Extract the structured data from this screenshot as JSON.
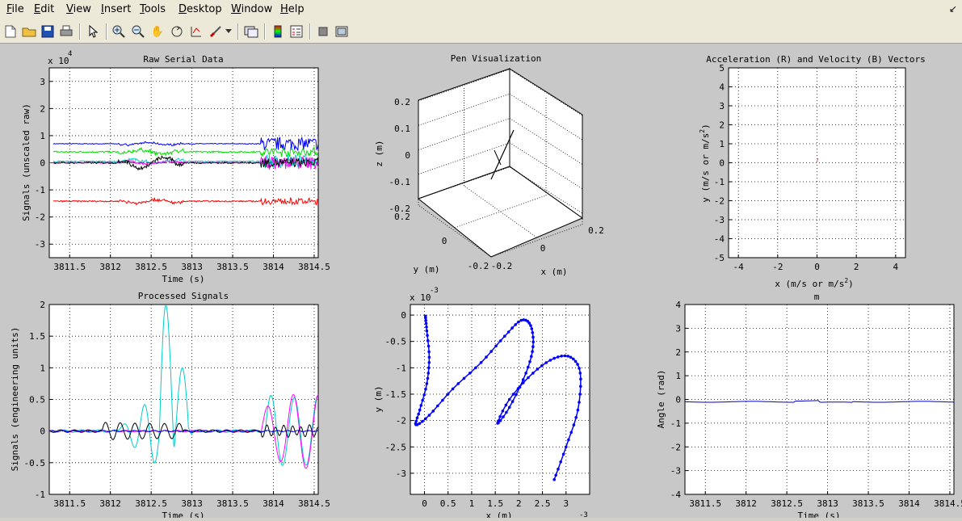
{
  "menu": {
    "items": [
      "File",
      "Edit",
      "View",
      "Insert",
      "Tools",
      "Desktop",
      "Window",
      "Help"
    ]
  },
  "toolbar": {
    "icons": [
      "new-file-icon",
      "open-folder-icon",
      "save-icon",
      "print-icon",
      "pointer-icon",
      "zoom-in-icon",
      "zoom-out-icon",
      "pan-hand-icon",
      "rotate-3d-icon",
      "data-cursor-icon",
      "brush-icon",
      "dropdown-arrow-icon",
      "link-plot-icon",
      "colorbar-icon",
      "legend-icon",
      "hide-tools-icon",
      "show-tools-icon"
    ]
  },
  "plots": {
    "raw": {
      "title": "Raw Serial Data",
      "xlabel": "Time (s)",
      "ylabel": "Signals (unscaled raw)",
      "exponent": "x 10",
      "exponent_power": "4"
    },
    "pen": {
      "title": "Pen Visualization",
      "xlabel": "x (m)",
      "ylabel": "y (m)",
      "zlabel": "z (m)"
    },
    "accel": {
      "title": "Acceleration (R) and Velocity (B) Vectors",
      "xlabel": "x (m/s or m/s",
      "xlabel_sup": "2",
      "xlabel_end": ")",
      "ylabel": "y (m/s or m/s",
      "ylabel_sup": "2",
      "ylabel_end": ")"
    },
    "processed": {
      "title": "Processed Signals",
      "xlabel": "Time (s)",
      "ylabel": "Signals (engineering units)"
    },
    "traj": {
      "xlabel": "x (m)",
      "ylabel": "y (m)",
      "exponent": "x 10",
      "exponent_power": "-3",
      "x_exponent_power": "-3"
    },
    "angle": {
      "title": "m",
      "xlabel": "Time (s)",
      "ylabel": "Angle (rad)"
    }
  },
  "chart_data": [
    {
      "type": "line",
      "title": "Raw Serial Data",
      "xlabel": "Time (s)",
      "ylabel": "Signals (unscaled raw)",
      "xlim": [
        3811.25,
        3814.55
      ],
      "ylim": [
        -3.5,
        3.5
      ],
      "y_scale_label": "x 10^4",
      "xticks": [
        "3811.5",
        "3812",
        "3812.5",
        "3813",
        "3813.5",
        "3814",
        "3814.5"
      ],
      "xtick_values": [
        3811.5,
        3812,
        3812.5,
        3813,
        3813.5,
        3814,
        3814.5
      ],
      "yticks": [
        "3",
        "2",
        "1",
        "0",
        "-1",
        "-2",
        "-3"
      ],
      "ytick_values": [
        3,
        2,
        1,
        0,
        -1,
        -2,
        -3
      ],
      "series": [
        {
          "color": "#0000ff",
          "baseline": 0.7,
          "noise": 0.03,
          "burst": 0.3
        },
        {
          "color": "#00dd00",
          "baseline": 0.4,
          "noise": 0.06,
          "burst": 0.2
        },
        {
          "color": "#00cccc",
          "baseline": 0.05,
          "noise": 0.05,
          "burst": 0.3
        },
        {
          "color": "#ff00ff",
          "baseline": 0.0,
          "noise": 0.04,
          "burst": 0.3
        },
        {
          "color": "#000000",
          "baseline": 0.0,
          "noise": 0.06,
          "burst": 0.2
        },
        {
          "color": "#ff0000",
          "baseline": -1.42,
          "noise": 0.05,
          "burst": 0.15
        }
      ],
      "grid": true
    },
    {
      "type": "line",
      "title": "Pen Visualization",
      "xlabel": "x (m)",
      "ylabel": "y (m)",
      "zlabel": "z (m)",
      "zticks": [
        "0.2",
        "0.1",
        "0",
        "-0.1",
        "-0.2"
      ],
      "yticks": [
        "0.2",
        "0",
        "-0.2"
      ],
      "xticks": [
        "-0.2",
        "0",
        "0.2"
      ],
      "grid": true
    },
    {
      "type": "scatter",
      "title": "Acceleration (R) and Velocity (B) Vectors",
      "xlim": [
        -4.5,
        4.5
      ],
      "ylim": [
        -5,
        5
      ],
      "xticks": [
        "-4",
        "-2",
        "0",
        "2",
        "4"
      ],
      "xtick_values": [
        -4,
        -2,
        0,
        2,
        4
      ],
      "yticks": [
        "5",
        "4",
        "3",
        "2",
        "1",
        "0",
        "-1",
        "-2",
        "-3",
        "-4",
        "-5"
      ],
      "ytick_values": [
        5,
        4,
        3,
        2,
        1,
        0,
        -1,
        -2,
        -3,
        -4,
        -5
      ],
      "grid": true
    },
    {
      "type": "line",
      "title": "Processed Signals",
      "xlabel": "Time (s)",
      "ylabel": "Signals (engineering units)",
      "xlim": [
        3811.25,
        3814.55
      ],
      "ylim": [
        -1,
        2
      ],
      "xticks": [
        "3811.5",
        "3812",
        "3812.5",
        "3813",
        "3813.5",
        "3814",
        "3814.5"
      ],
      "xtick_values": [
        3811.5,
        3812,
        3812.5,
        3813,
        3813.5,
        3814,
        3814.5
      ],
      "yticks": [
        "2",
        "1.5",
        "1",
        "0.5",
        "0",
        "-0.5",
        "-1"
      ],
      "ytick_values": [
        2,
        1.5,
        1,
        0.5,
        0,
        -0.5,
        -1
      ],
      "grid": true
    },
    {
      "type": "line",
      "xlabel": "x (m)",
      "ylabel": "y (m)",
      "xlim": [
        -0.3,
        3.5
      ],
      "ylim": [
        -3.4,
        0.2
      ],
      "scale_label": "x 10^-3",
      "xticks": [
        "0",
        "0.5",
        "1",
        "1.5",
        "2",
        "2.5",
        "3"
      ],
      "xtick_values": [
        0,
        0.5,
        1,
        1.5,
        2,
        2.5,
        3
      ],
      "yticks": [
        "0",
        "-0.5",
        "-1",
        "-1.5",
        "-2",
        "-2.5",
        "-3"
      ],
      "ytick_values": [
        0,
        -0.5,
        -1,
        -1.5,
        -2,
        -2.5,
        -3
      ],
      "points": [
        [
          0.02,
          -0.02
        ],
        [
          0.05,
          -0.3
        ],
        [
          0.1,
          -0.8
        ],
        [
          0.05,
          -1.3
        ],
        [
          -0.1,
          -1.8
        ],
        [
          -0.18,
          -2.08
        ],
        [
          0.1,
          -1.9
        ],
        [
          0.6,
          -1.4
        ],
        [
          1.2,
          -0.9
        ],
        [
          1.7,
          -0.4
        ],
        [
          2.05,
          -0.1
        ],
        [
          2.25,
          -0.2
        ],
        [
          2.3,
          -0.6
        ],
        [
          2.15,
          -1.1
        ],
        [
          1.8,
          -1.75
        ],
        [
          1.55,
          -2.05
        ],
        [
          1.8,
          -1.6
        ],
        [
          2.3,
          -1.1
        ],
        [
          2.75,
          -0.82
        ],
        [
          3.1,
          -0.8
        ],
        [
          3.3,
          -1.1
        ],
        [
          3.25,
          -1.8
        ],
        [
          3.0,
          -2.5
        ],
        [
          2.75,
          -3.12
        ]
      ],
      "grid": true
    },
    {
      "type": "line",
      "title": "m",
      "xlabel": "Time (s)",
      "ylabel": "Angle (rad)",
      "xlim": [
        3811.25,
        3814.55
      ],
      "ylim": [
        -4,
        4
      ],
      "xticks": [
        "3811.5",
        "3812",
        "3812.5",
        "3813",
        "3813.5",
        "3814",
        "3814.5"
      ],
      "xtick_values": [
        3811.5,
        3812,
        3812.5,
        3813,
        3813.5,
        3814,
        3814.5
      ],
      "yticks": [
        "4",
        "3",
        "2",
        "1",
        "0",
        "-1",
        "-2",
        "-3",
        "-4"
      ],
      "ytick_values": [
        4,
        3,
        2,
        1,
        0,
        -1,
        -2,
        -3,
        -4
      ],
      "grid": true
    }
  ]
}
